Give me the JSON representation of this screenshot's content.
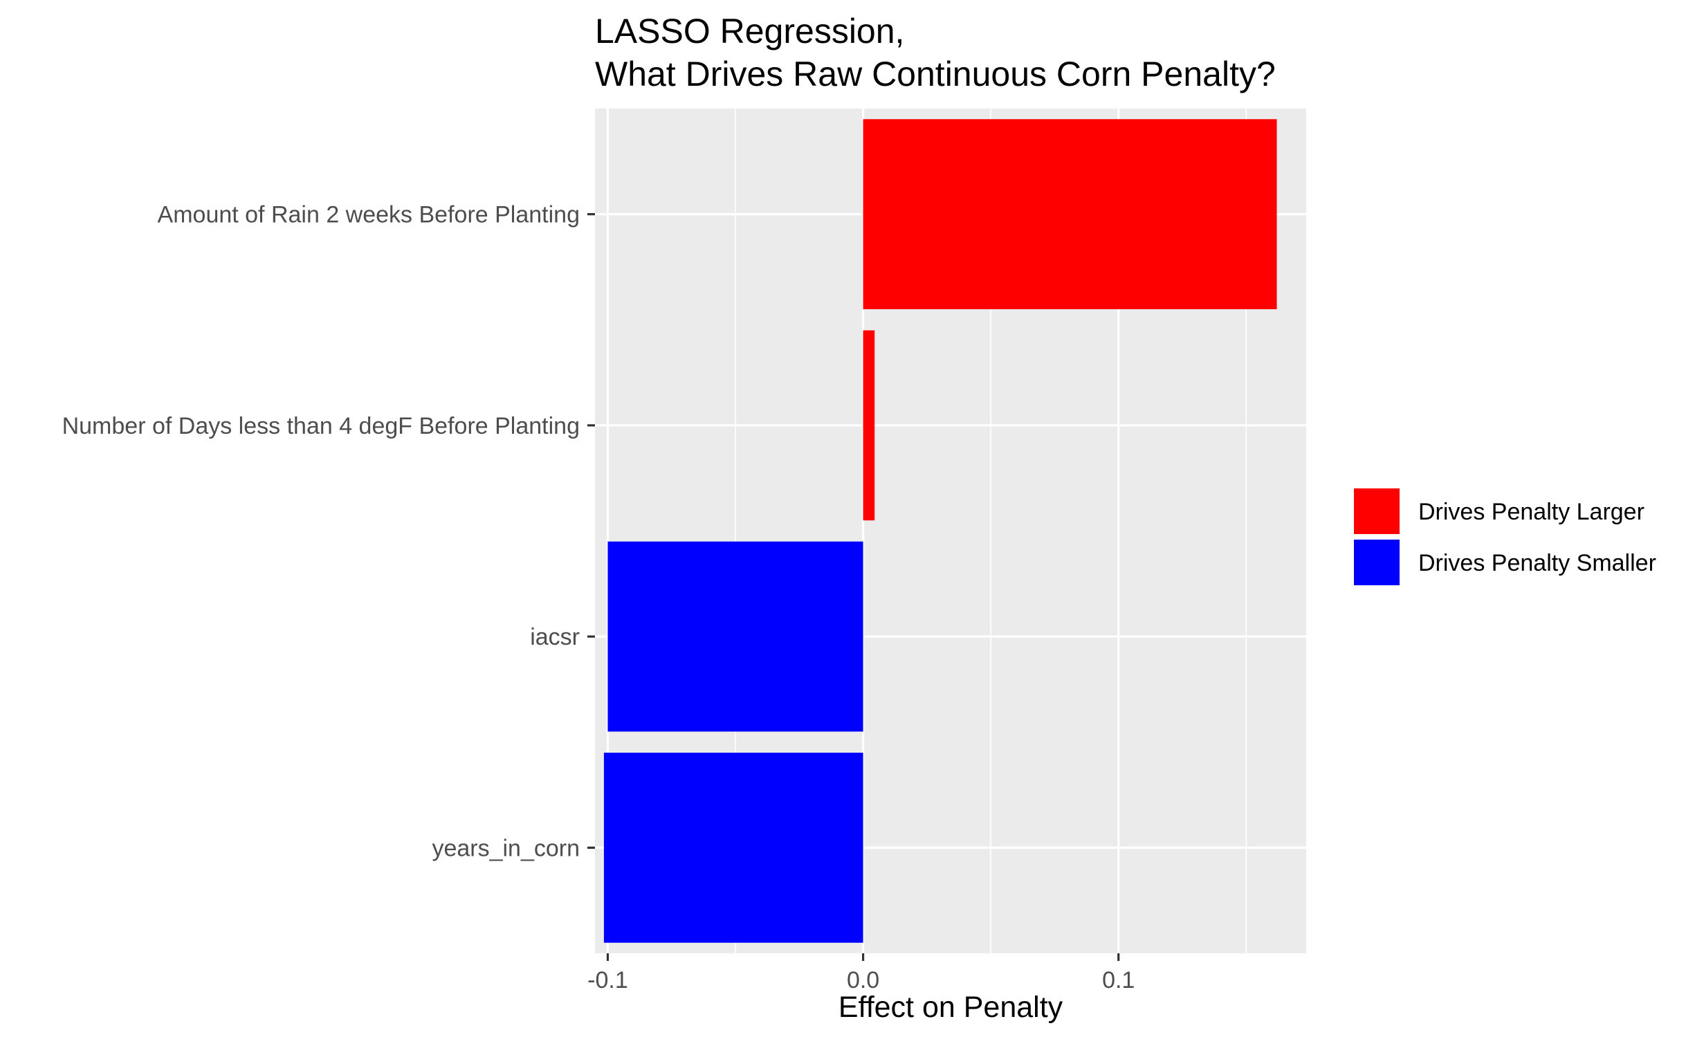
{
  "chart_data": {
    "type": "bar",
    "orientation": "horizontal",
    "title": "LASSO Regression,\nWhat Drives Raw Continuous Corn Penalty?",
    "title_lines": [
      "LASSO Regression,",
      "What Drives Raw Continuous Corn Penalty?"
    ],
    "xlabel": "Effect on Penalty",
    "ylabel": "",
    "xlim": [
      -0.105,
      0.1735
    ],
    "x_ticks": [
      -0.1,
      0.0,
      0.1
    ],
    "x_tick_labels": [
      "-0.1",
      "0.0",
      "0.1"
    ],
    "x_minor_ticks": [
      -0.05,
      0.05,
      0.15
    ],
    "grid": true,
    "legend_position": "right",
    "categories": [
      "Amount of Rain 2 weeks Before Planting",
      "Number of Days less than 4 degF Before Planting",
      "iacsr",
      "years_in_corn"
    ],
    "values": [
      0.162,
      0.0045,
      -0.1,
      -0.1015
    ],
    "groups": [
      "Drives Penalty Larger",
      "Drives Penalty Larger",
      "Drives Penalty Smaller",
      "Drives Penalty Smaller"
    ],
    "legend": [
      {
        "label": "Drives Penalty Larger",
        "color": "#ff0000"
      },
      {
        "label": "Drives Penalty Smaller",
        "color": "#0000ff"
      }
    ],
    "panel_background": "#ebebeb",
    "grid_color": "#ffffff"
  }
}
